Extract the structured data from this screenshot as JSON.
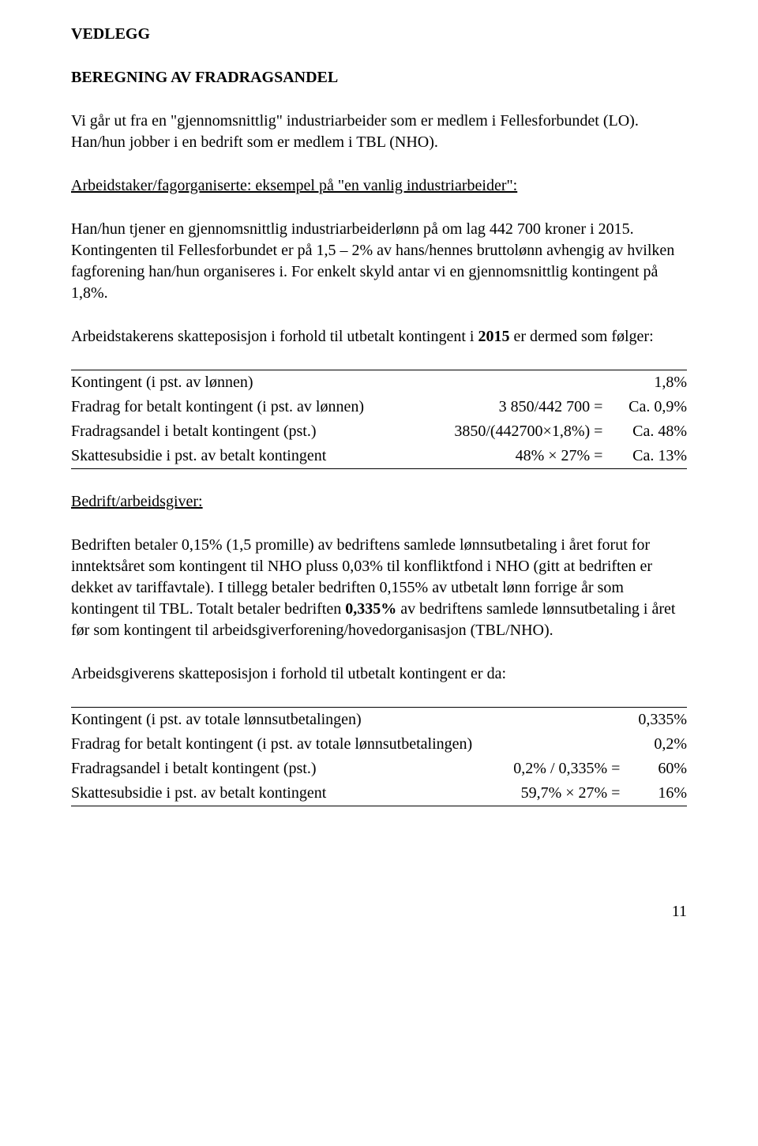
{
  "title": "VEDLEGG",
  "heading": "BEREGNING AV FRADRAGSANDEL",
  "intro": "Vi går ut fra en \"gjennomsnittlig\" industriarbeider som er medlem i Fellesforbundet (LO). Han/hun jobber i en bedrift som er medlem i TBL (NHO).",
  "section1_heading": "Arbeidstaker/fagorganiserte: eksempel på \"en vanlig industriarbeider\":",
  "section1_para": "Han/hun tjener en gjennomsnittlig industriarbeiderlønn på om lag 442 700 kroner i 2015. Kontingenten til Fellesforbundet er på 1,5 – 2% av hans/hennes bruttolønn avhengig av hvilken fagforening han/hun organiseres i. For enkelt skyld antar vi en gjennomsnittlig kontingent på 1,8%.",
  "section1_lead_a": "Arbeidstakerens skatteposisjon i forhold til utbetalt kontingent i ",
  "section1_lead_year": "2015",
  "section1_lead_b": " er dermed som følger:",
  "table1": {
    "rows": [
      {
        "label": "Kontingent (i pst. av lønnen)",
        "calc": "",
        "value": "1,8%"
      },
      {
        "label": "Fradrag for betalt kontingent (i pst. av lønnen)",
        "calc": "3 850/442 700 =",
        "value": "Ca. 0,9%"
      },
      {
        "label": "Fradragsandel i betalt kontingent (pst.)",
        "calc": "3850/(442700×1,8%) =",
        "value": "Ca. 48%"
      },
      {
        "label": "Skattesubsidie i pst. av betalt kontingent",
        "calc": "48% × 27% =",
        "value": "Ca. 13%"
      }
    ]
  },
  "section2_heading": "Bedrift/arbeidsgiver:",
  "section2_para_a": "Bedriften betaler 0,15% (1,5 promille) av bedriftens samlede lønnsutbetaling i året forut for inntektsåret som kontingent til NHO pluss 0,03% til konfliktfond i NHO (gitt at bedriften er dekket av tariffavtale). I tillegg betaler bedriften 0,155% av utbetalt lønn forrige år som kontingent til TBL. Totalt betaler bedriften ",
  "section2_para_bold": "0,335%",
  "section2_para_b": " av bedriftens samlede lønnsutbetaling i året før som kontingent til arbeidsgiverforening/hovedorganisasjon (TBL/NHO).",
  "section2_lead": "Arbeidsgiverens skatteposisjon i forhold til utbetalt kontingent er da:",
  "table2": {
    "rows": [
      {
        "label": "Kontingent (i pst. av totale lønnsutbetalingen)",
        "calc": "",
        "value": "0,335%"
      },
      {
        "label": "Fradrag for betalt kontingent (i pst. av totale lønnsutbetalingen)",
        "calc": "",
        "value": "0,2%"
      },
      {
        "label": "Fradragsandel i betalt kontingent (pst.)",
        "calc": "0,2% / 0,335% =",
        "value": "60%"
      },
      {
        "label": "Skattesubsidie i pst. av betalt kontingent",
        "calc": "59,7% × 27% =",
        "value": "16%"
      }
    ]
  },
  "page_number": "11"
}
